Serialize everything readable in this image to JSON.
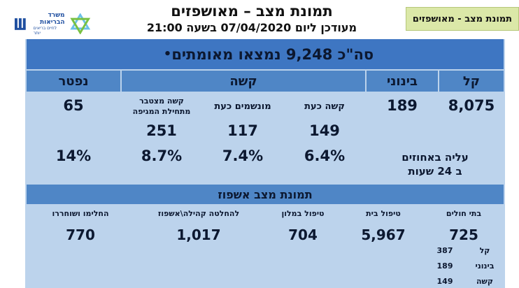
{
  "header": {
    "title": "תמונת מצב – מאושפזים",
    "subtitle": "מעודכן ליום 07/04/2020 בשעה 21:00",
    "tag": "תמונת מצב - מאושפזים",
    "logo_line1": "משרד",
    "logo_line2": "הבריאות",
    "logo_line3": "לחיים בריאים יותר"
  },
  "summary": {
    "banner": "סה\"כ 9,248 נמצאו מאומתים",
    "bullet": "•"
  },
  "status_table": {
    "headers": {
      "light": "קל",
      "moderate": "בינוני",
      "severe": "קשה",
      "deceased": "נפטר"
    },
    "severe_subheaders": {
      "severe_now": "קשה כעת",
      "ventilated_now": "מונשמים כעת",
      "severe_cumulative": "קשה מצטבר\nמתחילת המגיפה"
    },
    "values": {
      "light": "8,075",
      "moderate": "189",
      "deceased": "65",
      "severe_now": "149",
      "ventilated_now": "117",
      "severe_cumulative": "251"
    },
    "rise_label_line1": "עליה באחוזים",
    "rise_label_line2": "ב 24 שעות",
    "percentages": {
      "severe_now": "6.4%",
      "ventilated_now": "7.4%",
      "severe_cumulative": "8.7%",
      "deceased": "14%"
    }
  },
  "hospitalization": {
    "title": "תמונת מצב אשפוז",
    "columns": [
      {
        "key": "hospitals",
        "label": "בתי חולים",
        "value": "725"
      },
      {
        "key": "home_care",
        "label": "טיפול בית",
        "value": "5,967"
      },
      {
        "key": "hotel_care",
        "label": "טיפול במלון",
        "value": "704"
      },
      {
        "key": "community",
        "label": "להחלטה קהילה\\אשפוז",
        "value": "1,017"
      },
      {
        "key": "recovered",
        "label": "החלימו ושוחררו",
        "value": "770"
      }
    ],
    "hospital_breakdown": [
      {
        "label": "קל",
        "value": "387"
      },
      {
        "label": "בינוני",
        "value": "189"
      },
      {
        "label": "קשה",
        "value": "149"
      }
    ]
  }
}
